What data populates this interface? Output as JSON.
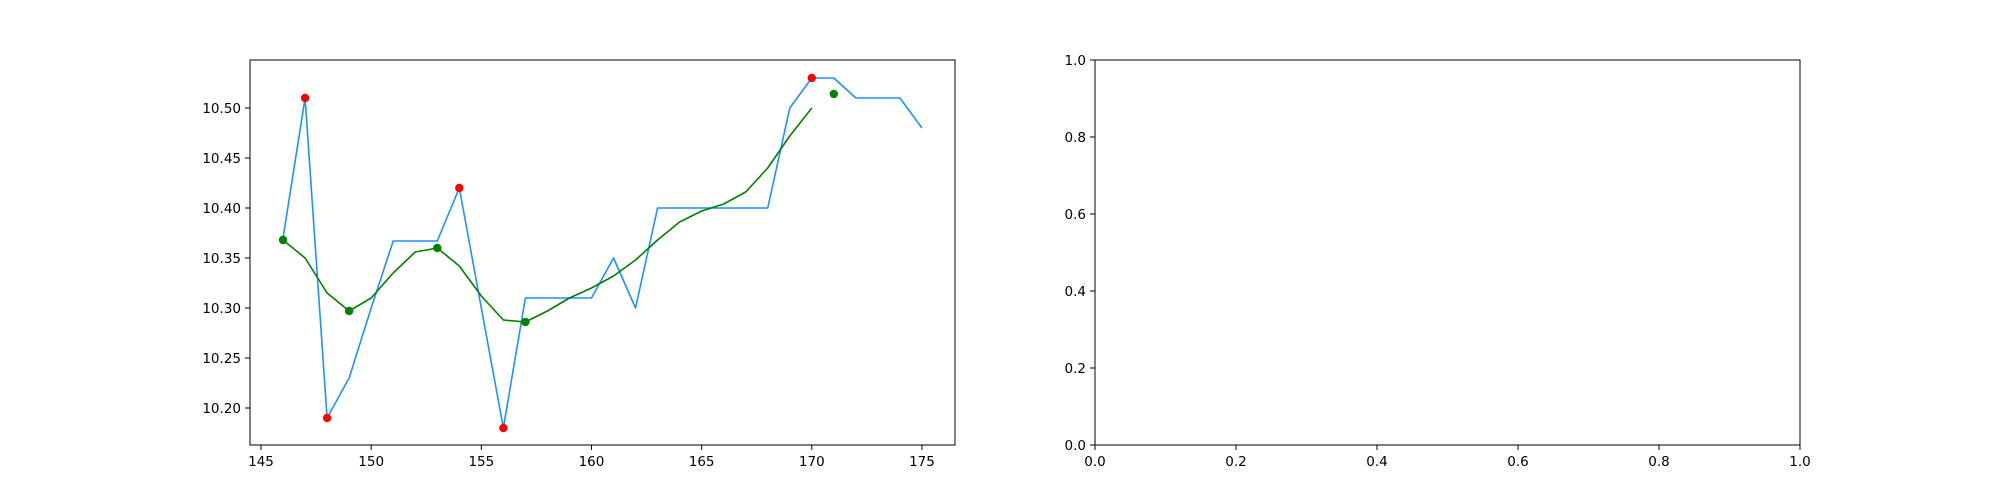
{
  "chart_data": [
    {
      "type": "line",
      "title": "",
      "xlabel": "",
      "ylabel": "",
      "xlim": [
        144.5,
        176.5
      ],
      "ylim": [
        10.163,
        10.548
      ],
      "xticks": [
        145,
        150,
        155,
        160,
        165,
        170,
        175
      ],
      "xtick_labels": [
        "145",
        "150",
        "155",
        "160",
        "165",
        "170",
        "175"
      ],
      "yticks": [
        10.2,
        10.25,
        10.3,
        10.35,
        10.4,
        10.45,
        10.5
      ],
      "ytick_labels": [
        "10.20",
        "10.25",
        "10.30",
        "10.35",
        "10.40",
        "10.45",
        "10.50"
      ],
      "grid": false,
      "series": [
        {
          "kind": "line",
          "color": "#1e90ff",
          "x": [
            146,
            147,
            148,
            149,
            150,
            151,
            152,
            153,
            154,
            155,
            156,
            157,
            158,
            159,
            160,
            161,
            162,
            163,
            164,
            165,
            166,
            167,
            168,
            169,
            170,
            171,
            172,
            173,
            174,
            175
          ],
          "y": [
            10.37,
            10.51,
            10.19,
            10.23,
            10.3,
            10.367,
            10.367,
            10.367,
            10.42,
            10.3,
            10.18,
            10.31,
            10.31,
            10.31,
            10.31,
            10.35,
            10.3,
            10.4,
            10.4,
            10.4,
            10.4,
            10.4,
            10.4,
            10.5,
            10.53,
            10.53,
            10.51,
            10.51,
            10.51,
            10.48
          ]
        },
        {
          "kind": "line",
          "color": "#008000",
          "x": [
            146,
            147,
            148,
            149,
            150,
            151,
            152,
            153,
            154,
            155,
            156,
            157,
            158,
            159,
            160,
            161,
            162,
            163,
            164,
            165,
            166,
            167,
            168,
            169,
            170
          ],
          "y": [
            10.368,
            10.35,
            10.315,
            10.297,
            10.31,
            10.335,
            10.356,
            10.36,
            10.342,
            10.312,
            10.288,
            10.286,
            10.297,
            10.31,
            10.32,
            10.332,
            10.348,
            10.368,
            10.386,
            10.397,
            10.404,
            10.416,
            10.44,
            10.472,
            10.5
          ]
        },
        {
          "kind": "scatter",
          "color": "#ff0000",
          "x": [
            147,
            148,
            154,
            156,
            170
          ],
          "y": [
            10.51,
            10.19,
            10.42,
            10.18,
            10.53
          ]
        },
        {
          "kind": "scatter",
          "color": "#008000",
          "x": [
            146,
            149,
            153,
            157,
            171
          ],
          "y": [
            10.368,
            10.297,
            10.36,
            10.286,
            10.514
          ]
        }
      ]
    },
    {
      "type": "line",
      "title": "",
      "xlabel": "",
      "ylabel": "",
      "xlim": [
        0,
        1
      ],
      "ylim": [
        0,
        1
      ],
      "xticks": [
        0,
        0.2,
        0.4,
        0.6,
        0.8,
        1.0
      ],
      "xtick_labels": [
        "0.0",
        "0.2",
        "0.4",
        "0.6",
        "0.8",
        "1.0"
      ],
      "yticks": [
        0,
        0.2,
        0.4,
        0.6,
        0.8,
        1.0
      ],
      "ytick_labels": [
        "0.0",
        "0.2",
        "0.4",
        "0.6",
        "0.8",
        "1.0"
      ],
      "grid": false,
      "series": []
    }
  ]
}
